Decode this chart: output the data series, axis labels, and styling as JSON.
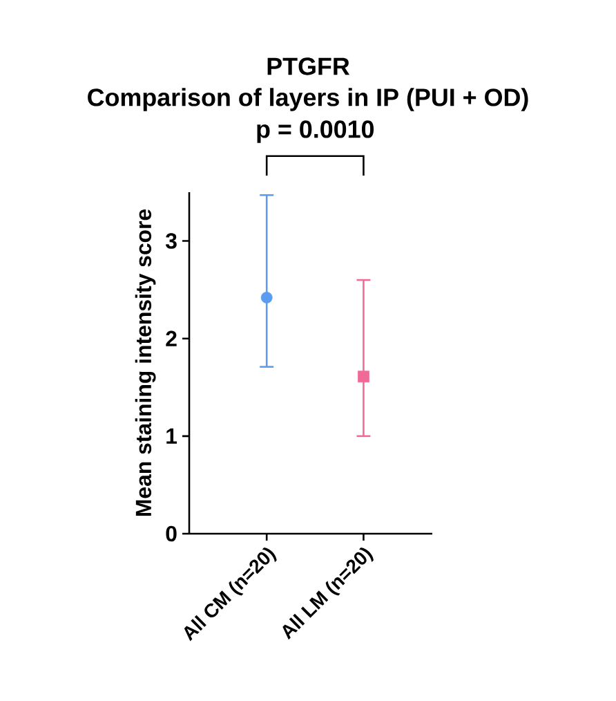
{
  "chart_data": {
    "type": "scatter",
    "title": "PTGFR",
    "subtitle": "Comparison of layers in IP (PUI + OD)",
    "ylabel": "Mean staining intensity score",
    "categories": [
      "All CM (n=20)",
      "All LM (n=20)"
    ],
    "series": [
      {
        "color": "#5b9cf0",
        "marker": "circle",
        "values": [
          2.42,
          null
        ],
        "errors": [
          [
            1.71,
            3.47
          ],
          null
        ]
      },
      {
        "color": "#f06a98",
        "marker": "square",
        "values": [
          null,
          1.61
        ],
        "errors": [
          null,
          [
            1.0,
            2.6
          ]
        ]
      }
    ],
    "ylim": [
      0,
      3.5
    ],
    "yticks": [
      0,
      1,
      2,
      3
    ],
    "grid": false,
    "annotations": [
      "p = 0.0010"
    ]
  }
}
